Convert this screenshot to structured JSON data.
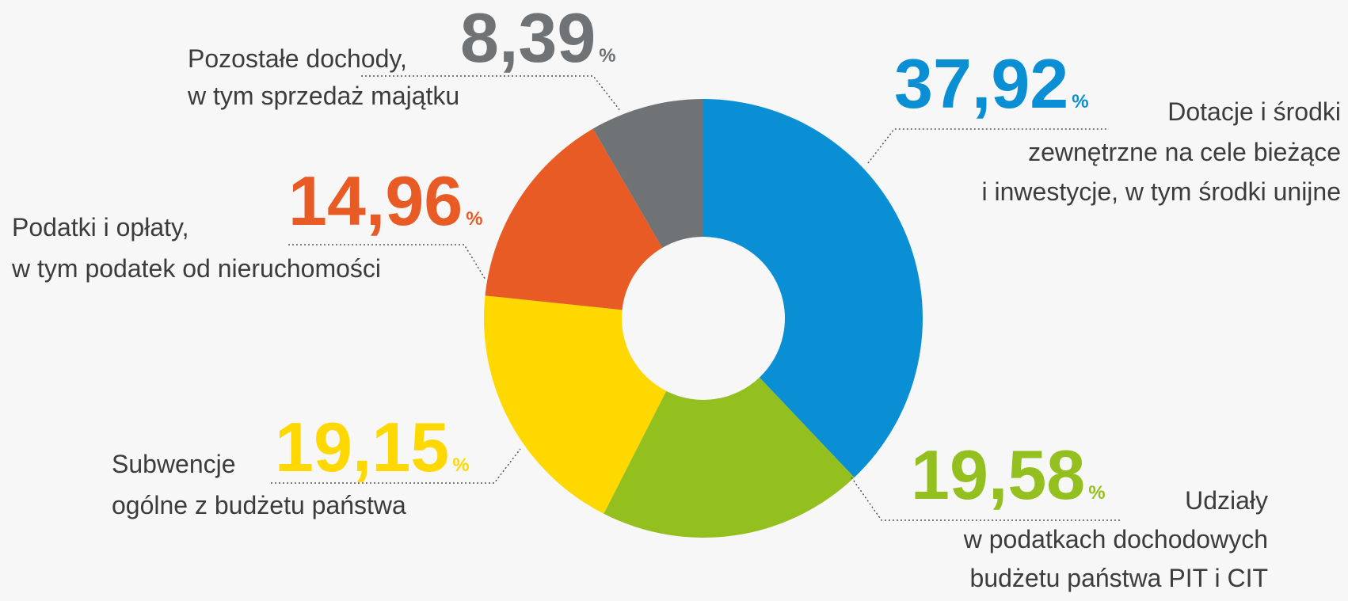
{
  "chart_data": {
    "type": "donut",
    "categories": [
      [
        "Dotacje i środki",
        "zewnętrzne na cele bieżące",
        "i inwestycje, w tym środki unijne"
      ],
      [
        "Udziały",
        "w podatkach dochodowych",
        "budżetu państwa PIT i CIT"
      ],
      [
        "Subwencje",
        "ogólne z budżetu państwa"
      ],
      [
        "Podatki i opłaty,",
        "w tym podatek od nieruchomości"
      ],
      [
        "Pozostałe dochody,",
        "w tym sprzedaż majątku"
      ]
    ],
    "values": [
      37.92,
      19.58,
      19.15,
      14.96,
      8.39
    ],
    "value_labels": [
      "37,92",
      "19,58",
      "19,15",
      "14,96",
      "8,39"
    ],
    "value_unit": "%",
    "colors": [
      "#0a8fd4",
      "#93c01f",
      "#ffd800",
      "#e95b24",
      "#6f7375"
    ]
  }
}
